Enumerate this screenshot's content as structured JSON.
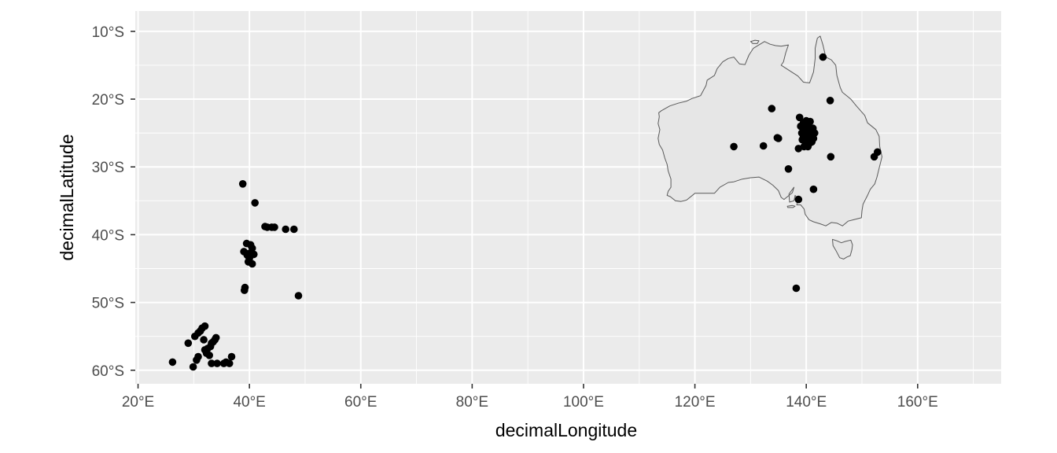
{
  "chart_data": {
    "type": "scatter",
    "title": "",
    "xlabel": "decimalLongitude",
    "ylabel": "decimalLatitude",
    "xlim": [
      19.5,
      175
    ],
    "ylim": [
      -62,
      -7
    ],
    "grid": true,
    "panel_background": "#ebebeb",
    "gridline_color": "#ffffff",
    "point_color": "#000000",
    "land_fill": "#e6e6e6",
    "land_stroke": "#5a5a5a",
    "x_ticks": [
      {
        "value": 20,
        "label": "20°E"
      },
      {
        "value": 40,
        "label": "40°E"
      },
      {
        "value": 60,
        "label": "60°E"
      },
      {
        "value": 80,
        "label": "80°E"
      },
      {
        "value": 100,
        "label": "100°E"
      },
      {
        "value": 120,
        "label": "120°E"
      },
      {
        "value": 140,
        "label": "140°E"
      },
      {
        "value": 160,
        "label": "160°E"
      }
    ],
    "y_ticks": [
      {
        "value": -10,
        "label": "10°S"
      },
      {
        "value": -20,
        "label": "20°S"
      },
      {
        "value": -30,
        "label": "30°S"
      },
      {
        "value": -40,
        "label": "40°S"
      },
      {
        "value": -50,
        "label": "50°S"
      },
      {
        "value": -60,
        "label": "60°S"
      }
    ],
    "land_outlines": [
      {
        "name": "Australia",
        "lonlat": [
          [
            113.5,
            -22.0
          ],
          [
            114.0,
            -21.7
          ],
          [
            115.5,
            -21.0
          ],
          [
            117.0,
            -20.6
          ],
          [
            118.5,
            -20.3
          ],
          [
            119.5,
            -19.9
          ],
          [
            121.0,
            -19.5
          ],
          [
            122.0,
            -18.0
          ],
          [
            122.2,
            -17.2
          ],
          [
            123.5,
            -16.5
          ],
          [
            124.0,
            -15.5
          ],
          [
            125.0,
            -14.5
          ],
          [
            126.0,
            -14.0
          ],
          [
            127.0,
            -13.8
          ],
          [
            128.0,
            -14.8
          ],
          [
            129.0,
            -14.9
          ],
          [
            129.7,
            -13.5
          ],
          [
            130.5,
            -12.5
          ],
          [
            131.5,
            -12.0
          ],
          [
            132.5,
            -11.5
          ],
          [
            133.5,
            -11.9
          ],
          [
            134.5,
            -12.1
          ],
          [
            135.5,
            -12.2
          ],
          [
            136.8,
            -12.0
          ],
          [
            136.3,
            -13.2
          ],
          [
            135.9,
            -14.5
          ],
          [
            135.5,
            -15.0
          ],
          [
            137.0,
            -15.8
          ],
          [
            138.5,
            -16.6
          ],
          [
            139.5,
            -17.5
          ],
          [
            140.6,
            -17.6
          ],
          [
            141.3,
            -16.0
          ],
          [
            141.6,
            -14.0
          ],
          [
            141.6,
            -12.5
          ],
          [
            142.0,
            -11.0
          ],
          [
            142.5,
            -10.7
          ],
          [
            143.0,
            -12.0
          ],
          [
            143.5,
            -13.8
          ],
          [
            144.5,
            -14.2
          ],
          [
            145.3,
            -15.0
          ],
          [
            145.5,
            -16.5
          ],
          [
            146.1,
            -18.3
          ],
          [
            146.5,
            -19.0
          ],
          [
            148.0,
            -20.0
          ],
          [
            149.0,
            -21.0
          ],
          [
            150.5,
            -22.4
          ],
          [
            151.0,
            -23.5
          ],
          [
            152.5,
            -24.5
          ],
          [
            153.1,
            -25.5
          ],
          [
            153.2,
            -27.0
          ],
          [
            153.6,
            -28.5
          ],
          [
            153.0,
            -30.5
          ],
          [
            152.7,
            -31.5
          ],
          [
            152.3,
            -32.5
          ],
          [
            151.5,
            -33.3
          ],
          [
            151.0,
            -34.2
          ],
          [
            150.2,
            -35.5
          ],
          [
            150.0,
            -36.5
          ],
          [
            149.9,
            -37.5
          ],
          [
            148.5,
            -37.8
          ],
          [
            147.5,
            -38.0
          ],
          [
            146.5,
            -38.7
          ],
          [
            145.5,
            -38.3
          ],
          [
            144.5,
            -38.2
          ],
          [
            143.5,
            -38.7
          ],
          [
            142.5,
            -38.4
          ],
          [
            141.3,
            -38.1
          ],
          [
            140.5,
            -37.8
          ],
          [
            139.8,
            -37.0
          ],
          [
            139.6,
            -36.2
          ],
          [
            139.0,
            -35.6
          ],
          [
            138.3,
            -35.6
          ],
          [
            138.5,
            -34.8
          ],
          [
            138.0,
            -34.2
          ],
          [
            137.8,
            -35.0
          ],
          [
            137.0,
            -35.2
          ],
          [
            136.9,
            -34.0
          ],
          [
            137.8,
            -33.0
          ],
          [
            137.5,
            -33.8
          ],
          [
            136.0,
            -34.8
          ],
          [
            135.5,
            -34.5
          ],
          [
            135.0,
            -33.5
          ],
          [
            134.0,
            -32.7
          ],
          [
            133.0,
            -32.1
          ],
          [
            131.5,
            -31.5
          ],
          [
            130.0,
            -31.6
          ],
          [
            128.5,
            -31.8
          ],
          [
            127.0,
            -32.2
          ],
          [
            126.0,
            -32.3
          ],
          [
            124.5,
            -33.0
          ],
          [
            123.5,
            -33.9
          ],
          [
            122.0,
            -33.9
          ],
          [
            120.0,
            -33.9
          ],
          [
            118.5,
            -34.9
          ],
          [
            117.5,
            -35.1
          ],
          [
            116.5,
            -35.0
          ],
          [
            115.6,
            -34.4
          ],
          [
            115.0,
            -34.2
          ],
          [
            115.2,
            -33.6
          ],
          [
            115.7,
            -33.0
          ],
          [
            115.7,
            -31.8
          ],
          [
            115.2,
            -30.6
          ],
          [
            115.0,
            -29.6
          ],
          [
            114.6,
            -28.7
          ],
          [
            114.2,
            -27.5
          ],
          [
            113.6,
            -26.7
          ],
          [
            113.4,
            -25.8
          ],
          [
            113.7,
            -24.5
          ],
          [
            113.4,
            -23.6
          ],
          [
            113.6,
            -22.6
          ],
          [
            113.5,
            -22.0
          ]
        ]
      },
      {
        "name": "Tasmania",
        "lonlat": [
          [
            144.7,
            -40.7
          ],
          [
            145.5,
            -40.9
          ],
          [
            146.3,
            -41.2
          ],
          [
            147.0,
            -41.0
          ],
          [
            148.0,
            -40.8
          ],
          [
            148.3,
            -41.5
          ],
          [
            148.2,
            -42.2
          ],
          [
            147.9,
            -43.1
          ],
          [
            147.3,
            -43.3
          ],
          [
            146.7,
            -43.6
          ],
          [
            146.0,
            -43.4
          ],
          [
            145.3,
            -42.3
          ],
          [
            144.8,
            -41.6
          ],
          [
            144.7,
            -40.7
          ]
        ]
      },
      {
        "name": "Kangaroo Island",
        "lonlat": [
          [
            136.6,
            -35.8
          ],
          [
            137.5,
            -35.7
          ],
          [
            138.0,
            -35.8
          ],
          [
            137.6,
            -36.0
          ],
          [
            136.7,
            -36.0
          ],
          [
            136.6,
            -35.8
          ]
        ]
      },
      {
        "name": "Melville Island",
        "lonlat": [
          [
            130.0,
            -11.5
          ],
          [
            130.8,
            -11.3
          ],
          [
            131.5,
            -11.4
          ],
          [
            131.2,
            -11.8
          ],
          [
            130.4,
            -11.8
          ],
          [
            130.0,
            -11.5
          ]
        ]
      }
    ],
    "series": [
      {
        "name": "",
        "points": [
          [
            26.2,
            -58.8
          ],
          [
            29.0,
            -56.0
          ],
          [
            29.9,
            -59.5
          ],
          [
            30.5,
            -58.5
          ],
          [
            30.8,
            -58.0
          ],
          [
            30.2,
            -55.0
          ],
          [
            30.8,
            -54.5
          ],
          [
            31.2,
            -54.2
          ],
          [
            31.5,
            -53.8
          ],
          [
            32.0,
            -53.5
          ],
          [
            31.8,
            -55.5
          ],
          [
            32.3,
            -57.5
          ],
          [
            32.0,
            -57.0
          ],
          [
            32.5,
            -56.8
          ],
          [
            33.0,
            -56.5
          ],
          [
            33.2,
            -56.0
          ],
          [
            33.5,
            -55.8
          ],
          [
            33.8,
            -55.5
          ],
          [
            34.0,
            -55.2
          ],
          [
            32.8,
            -57.8
          ],
          [
            33.2,
            -59.0
          ],
          [
            34.2,
            -59.0
          ],
          [
            35.4,
            -59.0
          ],
          [
            35.8,
            -58.8
          ],
          [
            36.4,
            -59.0
          ],
          [
            36.8,
            -58.0
          ],
          [
            38.8,
            -32.5
          ],
          [
            39.0,
            -42.5
          ],
          [
            39.2,
            -47.8
          ],
          [
            39.1,
            -48.2
          ],
          [
            39.6,
            -43.0
          ],
          [
            39.8,
            -44.0
          ],
          [
            39.5,
            -41.3
          ],
          [
            39.8,
            -42.8
          ],
          [
            40.2,
            -41.5
          ],
          [
            40.5,
            -44.3
          ],
          [
            40.8,
            -42.9
          ],
          [
            40.5,
            -42.0
          ],
          [
            40.0,
            -43.5
          ],
          [
            41.0,
            -35.3
          ],
          [
            42.8,
            -38.8
          ],
          [
            43.2,
            -38.9
          ],
          [
            44.0,
            -38.9
          ],
          [
            44.5,
            -38.9
          ],
          [
            46.5,
            -39.2
          ],
          [
            48.0,
            -39.2
          ],
          [
            48.8,
            -49.0
          ],
          [
            127.0,
            -27.0
          ],
          [
            132.3,
            -26.9
          ],
          [
            133.8,
            -21.4
          ],
          [
            134.8,
            -25.7
          ],
          [
            135.0,
            -25.8
          ],
          [
            136.8,
            -30.3
          ],
          [
            138.2,
            -47.9
          ],
          [
            138.6,
            -34.8
          ],
          [
            138.6,
            -27.3
          ],
          [
            138.8,
            -22.7
          ],
          [
            139.0,
            -24.0
          ],
          [
            139.2,
            -25.0
          ],
          [
            139.3,
            -26.0
          ],
          [
            139.5,
            -23.5
          ],
          [
            139.5,
            -25.5
          ],
          [
            139.6,
            -27.0
          ],
          [
            139.8,
            -24.5
          ],
          [
            139.9,
            -26.5
          ],
          [
            140.0,
            -23.2
          ],
          [
            140.0,
            -25.0
          ],
          [
            140.1,
            -26.0
          ],
          [
            140.3,
            -24.0
          ],
          [
            140.3,
            -27.0
          ],
          [
            140.5,
            -25.5
          ],
          [
            140.6,
            -26.5
          ],
          [
            140.7,
            -23.3
          ],
          [
            140.8,
            -24.8
          ],
          [
            141.0,
            -25.2
          ],
          [
            141.0,
            -26.3
          ],
          [
            141.2,
            -24.3
          ],
          [
            141.3,
            -25.8
          ],
          [
            141.5,
            -25.0
          ],
          [
            141.3,
            -33.3
          ],
          [
            143.0,
            -13.8
          ],
          [
            144.3,
            -20.2
          ],
          [
            144.4,
            -28.5
          ],
          [
            152.2,
            -28.5
          ],
          [
            152.8,
            -27.8
          ]
        ]
      }
    ]
  }
}
